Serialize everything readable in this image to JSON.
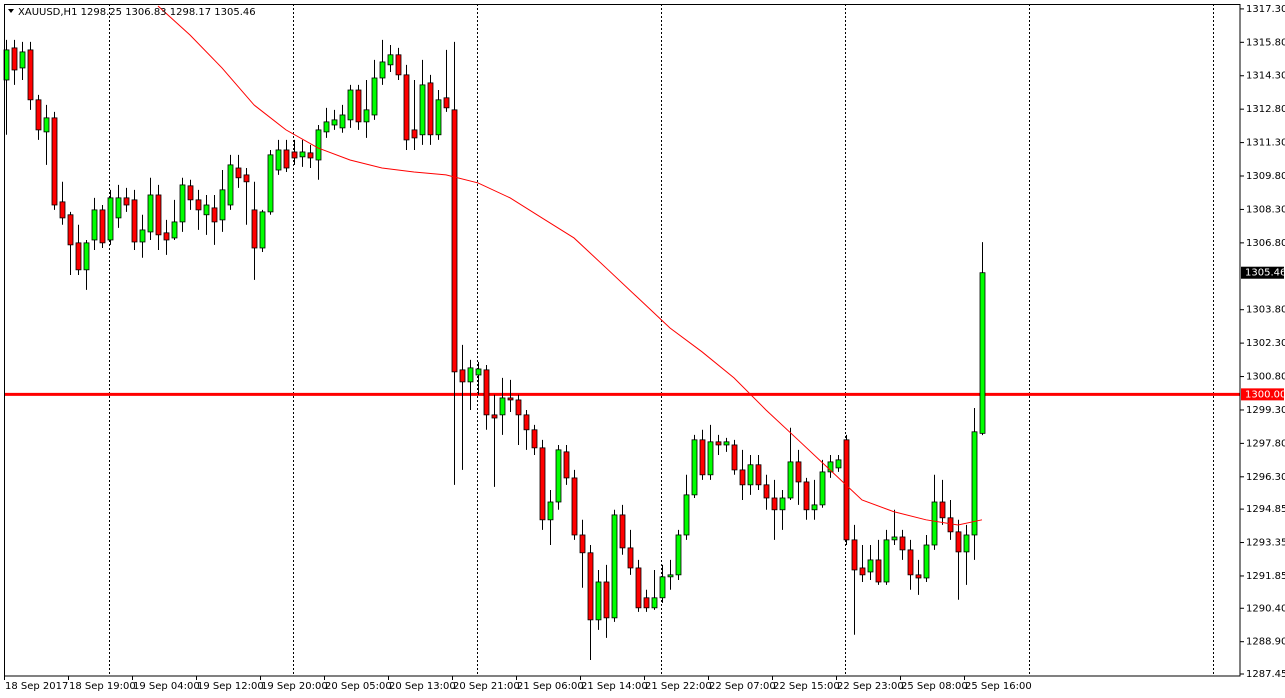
{
  "chart_data": {
    "type": "candlestick",
    "title": "XAUUSD,H1",
    "categories": [
      "18 Sep 2017",
      null,
      null,
      null,
      null,
      null,
      null,
      null,
      "18 Sep 19:00",
      null,
      null,
      null,
      null,
      null,
      null,
      null,
      "19 Sep 04:00",
      null,
      null,
      null,
      null,
      null,
      null,
      null,
      "19 Sep 12:00",
      null,
      null,
      null,
      null,
      null,
      null,
      null,
      "19 Sep 20:00",
      null,
      null,
      null,
      null,
      null,
      null,
      null,
      "20 Sep 05:00",
      null,
      null,
      null,
      null,
      null,
      null,
      null,
      "20 Sep 13:00",
      null,
      null,
      null,
      null,
      null,
      null,
      null,
      "20 Sep 21:00",
      null,
      null,
      null,
      null,
      null,
      null,
      null,
      "21 Sep 06:00",
      null,
      null,
      null,
      null,
      null,
      null,
      null,
      "21 Sep 14:00",
      null,
      null,
      null,
      null,
      null,
      null,
      null,
      "21 Sep 22:00",
      null,
      null,
      null,
      null,
      null,
      null,
      null,
      "22 Sep 07:00",
      null,
      null,
      null,
      null,
      null,
      null,
      null,
      "22 Sep 15:00",
      null,
      null,
      null,
      null,
      null,
      null,
      null,
      "22 Sep 23:00",
      null,
      null,
      null,
      null,
      null,
      null,
      null,
      "25 Sep 08:00",
      null,
      null,
      null,
      null,
      null,
      null,
      null,
      "25 Sep 16:00",
      null,
      null
    ],
    "open": [
      1314.11,
      1315.55,
      1314.65,
      1315.46,
      1313.22,
      1311.78,
      1312.41,
      1308.64,
      1308.06,
      1306.8,
      1305.59,
      1306.93,
      1308.28,
      1306.93,
      1307.92,
      1308.82,
      1308.73,
      1306.84,
      1307.29,
      1308.95,
      1307.25,
      1307.02,
      1307.74,
      1309.36,
      1308.73,
      1308.06,
      1308.37,
      1307.83,
      1308.5,
      1310.16,
      1309.85,
      1308.28,
      1306.57,
      1308.19,
      1310.07,
      1310.97,
      1310.88,
      1310.66,
      1310.84,
      1310.52,
      1311.78,
      1312.09,
      1311.96,
      1312.32,
      1313.66,
      1312.23,
      1312.54,
      1314.2,
      1314.79,
      1315.24,
      1314.34,
      1311.87,
      1311.65,
      1313.98,
      1311.65,
      1313.31,
      1312.77,
      1301.1,
      1300.56,
      1300.87,
      1301.1,
      1299.08,
      1299.08,
      1299.84,
      1299.75,
      1299.08,
      1298.41,
      1297.6,
      1294.37,
      1295.17,
      1297.42,
      1296.25,
      1293.69,
      1292.89,
      1289.88,
      1291.58,
      1289.97,
      1294.59,
      1293.11,
      1292.21,
      1290.87,
      1290.42,
      1290.87,
      1291.81,
      1291.9,
      1293.69,
      1295.49,
      1297.96,
      1296.39,
      1297.87,
      1297.73,
      1297.73,
      1296.61,
      1295.94,
      1296.84,
      1295.94,
      1295.35,
      1294.82,
      1295.35,
      1296.97,
      1296.07,
      1294.82,
      1295.04,
      1296.52,
      1296.7,
      1297.96,
      1293.47,
      1292.21,
      1292.03,
      1292.57,
      1291.58,
      1293.47,
      1293.6,
      1293.02,
      1291.9,
      1291.76,
      1293.24,
      1295.17,
      1294.46,
      1293.83,
      1292.93,
      1293.69,
      1298.25
    ],
    "high": [
      1315.91,
      1315.91,
      1315.82,
      1315.82,
      1313.44,
      1312.99,
      1312.68,
      1309.54,
      1308.19,
      1307.61,
      1306.93,
      1308.82,
      1308.5,
      1309.18,
      1309.4,
      1309.27,
      1309.18,
      1308.06,
      1309.72,
      1309.4,
      1307.83,
      1308.73,
      1309.72,
      1309.63,
      1309.18,
      1308.95,
      1308.95,
      1310.07,
      1310.75,
      1310.75,
      1310.16,
      1309.54,
      1308.28,
      1310.97,
      1311.42,
      1311.42,
      1311.42,
      1311.42,
      1311.2,
      1312.09,
      1312.86,
      1312.77,
      1312.99,
      1313.89,
      1313.89,
      1314.11,
      1315.01,
      1315.91,
      1315.68,
      1315.55,
      1314.79,
      1314.11,
      1315.01,
      1314.34,
      1313.66,
      1315.46,
      1315.82,
      1302.22,
      1301.55,
      1301.46,
      1301.32,
      1299.98,
      1300.74,
      1300.65,
      1299.98,
      1299.3,
      1298.63,
      1297.96,
      1295.71,
      1297.73,
      1297.73,
      1296.61,
      1294.37,
      1293.24,
      1292.12,
      1292.35,
      1294.82,
      1295.04,
      1293.92,
      1292.57,
      1291.23,
      1292.12,
      1292.35,
      1292.57,
      1293.92,
      1296.39,
      1298.18,
      1298.41,
      1298.63,
      1298.18,
      1298.05,
      1297.96,
      1297.51,
      1297.28,
      1297.28,
      1296.39,
      1296.16,
      1295.71,
      1298.5,
      1297.51,
      1296.25,
      1296.16,
      1297.06,
      1297.28,
      1297.28,
      1298.18,
      1294.14,
      1293.24,
      1293.24,
      1293.47,
      1293.92,
      1294.82,
      1293.92,
      1293.47,
      1292.57,
      1293.69,
      1296.39,
      1296.16,
      1295.26,
      1294.37,
      1294.14,
      1299.39,
      1306.83
    ],
    "low": [
      1311.65,
      1313.89,
      1314.11,
      1312.77,
      1311.42,
      1310.3,
      1308.28,
      1307.61,
      1305.36,
      1305.36,
      1304.69,
      1306.48,
      1306.57,
      1306.71,
      1307.47,
      1308.19,
      1306.48,
      1306.13,
      1306.93,
      1306.48,
      1306.26,
      1306.93,
      1307.29,
      1308.28,
      1307.38,
      1307.16,
      1306.71,
      1307.29,
      1308.28,
      1309.27,
      1307.61,
      1305.14,
      1306.39,
      1308.06,
      1309.85,
      1309.98,
      1310.3,
      1310.21,
      1310.16,
      1309.63,
      1311.51,
      1311.87,
      1311.74,
      1311.96,
      1311.87,
      1311.51,
      1312.32,
      1313.89,
      1314.47,
      1314.11,
      1310.97,
      1310.97,
      1311.2,
      1311.2,
      1311.42,
      1312.68,
      1295.94,
      1296.61,
      1299.3,
      1299.98,
      1298.41,
      1295.85,
      1298.18,
      1299.21,
      1297.73,
      1297.51,
      1297.28,
      1293.92,
      1293.24,
      1294.82,
      1295.94,
      1293.47,
      1291.32,
      1288.08,
      1289.43,
      1289.07,
      1289.79,
      1292.8,
      1291.9,
      1290.24,
      1290.24,
      1290.33,
      1290.64,
      1291.23,
      1291.67,
      1293.47,
      1295.35,
      1296.16,
      1296.16,
      1297.28,
      1297.42,
      1296.39,
      1295.26,
      1295.49,
      1295.71,
      1294.82,
      1293.47,
      1293.92,
      1295.26,
      1295.04,
      1294.37,
      1294.37,
      1294.91,
      1296.25,
      1296.52,
      1293.24,
      1289.21,
      1291.58,
      1291.67,
      1291.45,
      1291.45,
      1293.24,
      1292.57,
      1291.23,
      1291.0,
      1291.58,
      1293.02,
      1294.14,
      1293.47,
      1290.78,
      1291.45,
      1292.57,
      1298.17
    ],
    "close": [
      1315.46,
      1314.56,
      1315.37,
      1313.22,
      1311.87,
      1312.41,
      1308.5,
      1307.92,
      1306.71,
      1305.59,
      1306.8,
      1308.28,
      1306.8,
      1308.82,
      1308.82,
      1308.5,
      1306.84,
      1307.38,
      1308.95,
      1307.16,
      1306.93,
      1307.74,
      1309.4,
      1308.73,
      1308.28,
      1308.5,
      1307.74,
      1309.18,
      1310.3,
      1309.72,
      1309.54,
      1306.57,
      1308.19,
      1310.75,
      1310.97,
      1310.16,
      1310.61,
      1310.88,
      1310.61,
      1311.87,
      1312.23,
      1312.32,
      1312.54,
      1313.66,
      1312.23,
      1312.77,
      1314.2,
      1314.92,
      1315.24,
      1314.34,
      1311.42,
      1311.51,
      1313.89,
      1311.65,
      1313.22,
      1312.86,
      1301.01,
      1300.56,
      1301.19,
      1301.14,
      1299.08,
      1298.94,
      1299.84,
      1299.75,
      1299.08,
      1298.41,
      1297.6,
      1294.37,
      1295.17,
      1297.51,
      1296.25,
      1293.69,
      1292.89,
      1289.88,
      1291.58,
      1289.97,
      1294.59,
      1293.11,
      1292.21,
      1290.42,
      1290.42,
      1290.87,
      1291.81,
      1291.9,
      1293.69,
      1295.49,
      1297.96,
      1296.39,
      1297.87,
      1297.73,
      1297.87,
      1296.61,
      1295.94,
      1296.84,
      1295.94,
      1295.35,
      1294.82,
      1295.35,
      1296.97,
      1296.07,
      1294.82,
      1295.04,
      1296.52,
      1296.97,
      1297.06,
      1293.47,
      1292.12,
      1291.9,
      1292.57,
      1291.58,
      1293.47,
      1293.6,
      1293.02,
      1291.9,
      1291.76,
      1293.24,
      1295.17,
      1294.46,
      1293.83,
      1292.93,
      1293.69,
      1298.32,
      1305.46
    ],
    "up_color": "#00ff00",
    "down_color": "#ff0000",
    "ma": {
      "color": "#ff0000",
      "x": [
        19,
        23,
        27,
        31,
        35,
        39,
        43,
        47,
        51,
        55,
        59,
        63,
        67,
        71,
        75,
        79,
        83,
        87,
        91,
        95,
        99,
        103,
        107,
        111,
        115,
        119,
        122
      ],
      "values": [
        1317.43,
        1316.13,
        1314.65,
        1312.99,
        1311.87,
        1311.06,
        1310.52,
        1310.16,
        1309.98,
        1309.85,
        1309.49,
        1308.82,
        1307.92,
        1307.02,
        1305.68,
        1304.33,
        1302.98,
        1301.91,
        1300.74,
        1299.3,
        1297.96,
        1296.61,
        1295.26,
        1294.73,
        1294.37,
        1294.14,
        1294.37
      ]
    },
    "hline": {
      "value": 1300,
      "label": "1300.00",
      "color": "#ff0000"
    },
    "ylim": [
      1287.36,
      1317.52
    ],
    "yticks": [
      {
        "value": 1317.3,
        "label": "1317.30"
      },
      {
        "value": 1315.8,
        "label": "1315.80"
      },
      {
        "value": 1314.3,
        "label": "1314.30"
      },
      {
        "value": 1312.8,
        "label": "1312.80"
      },
      {
        "value": 1311.3,
        "label": "1311.30"
      },
      {
        "value": 1309.8,
        "label": "1309.80"
      },
      {
        "value": 1308.3,
        "label": "1308.30"
      },
      {
        "value": 1306.8,
        "label": "1306.80"
      },
      {
        "value": 1303.8,
        "label": "1303.80"
      },
      {
        "value": 1302.3,
        "label": "1302.30"
      },
      {
        "value": 1300.8,
        "label": "1300.80"
      },
      {
        "value": 1299.3,
        "label": "1299.30"
      },
      {
        "value": 1297.8,
        "label": "1297.80"
      },
      {
        "value": 1296.3,
        "label": "1296.30"
      },
      1294.85,
      1293.35,
      1291.85,
      {
        "value": 1290.4,
        "label": "1290.40"
      },
      {
        "value": 1288.9,
        "label": "1288.90"
      },
      1287.45
    ],
    "grid": true
  }
}
